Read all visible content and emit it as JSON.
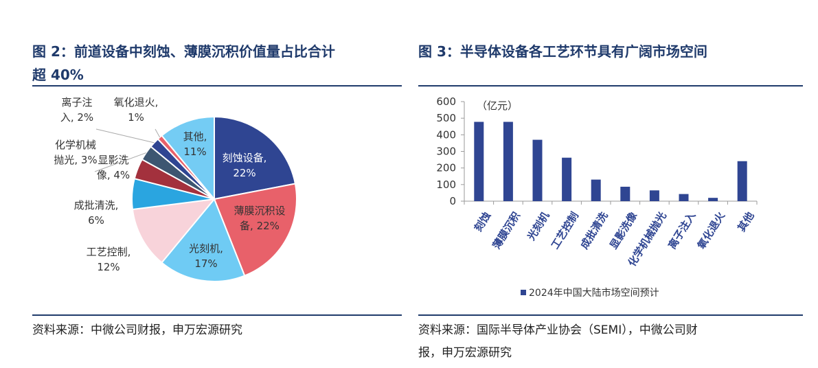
{
  "chart_data": [
    {
      "type": "pie",
      "title": "图  2：前道设备中刻蚀、薄膜沉积价值量占比合计超 40%",
      "slices": [
        {
          "label": "刻蚀设备",
          "value": 22,
          "display": "22%",
          "color": "#2f4592"
        },
        {
          "label": "薄膜沉积设备",
          "value": 22,
          "display": "22%",
          "color": "#e8616a"
        },
        {
          "label": "光刻机",
          "value": 17,
          "display": "17%",
          "color": "#6fcbf4"
        },
        {
          "label": "工艺控制",
          "value": 12,
          "display": "12%",
          "color": "#f8d3da"
        },
        {
          "label": "成批清洗",
          "value": 6,
          "display": "6%",
          "color": "#2aa5e0"
        },
        {
          "label": "显影洗像",
          "value": 4,
          "display": "4%",
          "color": "#a3313d"
        },
        {
          "label": "化学机械抛光",
          "value": 3,
          "display": "3%",
          "color": "#3d5671"
        },
        {
          "label": "离子注入",
          "value": 2,
          "display": "2%",
          "color": "#2f4592"
        },
        {
          "label": "氧化退火",
          "value": 1,
          "display": "1%",
          "color": "#e8616a"
        },
        {
          "label": "其他",
          "value": 11,
          "display": "11%",
          "color": "#74ccf4"
        }
      ],
      "source": "资料来源：中微公司财报，申万宏源研究"
    },
    {
      "type": "bar",
      "title": "图 3：半导体设备各工艺环节具有广阔市场空间",
      "unit_label": "（亿元）",
      "categories": [
        "刻蚀",
        "薄膜沉积",
        "光刻机",
        "工艺控制",
        "成批清洗",
        "显影洗像",
        "化学机械抛光",
        "离子注入",
        "氧化退火",
        "其他"
      ],
      "series": [
        {
          "name": "2024年中国大陆市场空间预计",
          "values": [
            478,
            478,
            370,
            262,
            130,
            87,
            65,
            43,
            20,
            241
          ],
          "color": "#2f4592"
        }
      ],
      "ylim": [
        0,
        600
      ],
      "yticks": [
        0,
        100,
        200,
        300,
        400,
        500,
        600
      ],
      "source": "资料来源：国际半导体产业协会（SEMI），中微公司财报，申万宏源研究"
    }
  ],
  "ui": {
    "left_title_line1": "图  2：前道设备中刻蚀、薄膜沉积价值量占比合计",
    "left_title_line2": "超 40%",
    "left_source": "资料来源：中微公司财报，申万宏源研究",
    "right_title": "图 3：半导体设备各工艺环节具有广阔市场空间",
    "right_source_line1": "资料来源：国际半导体产业协会（SEMI），中微公司财",
    "right_source_line2": "报，申万宏源研究"
  }
}
